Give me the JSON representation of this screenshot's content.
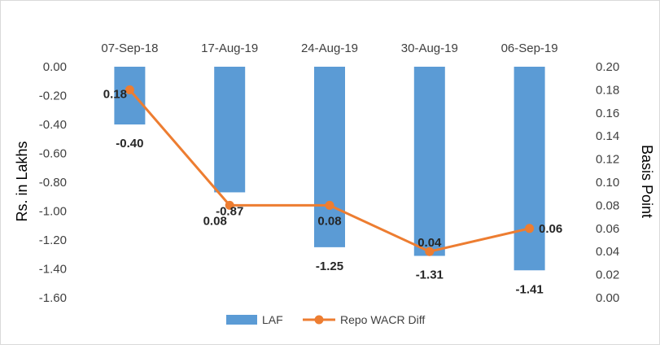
{
  "chart_data": {
    "type": "bar",
    "categories": [
      "07-Sep-18",
      "17-Aug-19",
      "24-Aug-19",
      "30-Aug-19",
      "06-Sep-19"
    ],
    "series": [
      {
        "name": "LAF",
        "type": "bar",
        "axis": "left",
        "values": [
          -0.4,
          -0.87,
          -1.25,
          -1.31,
          -1.41
        ],
        "labels": [
          "-0.40",
          "-0.87",
          "-1.25",
          "-1.31",
          "-1.41"
        ],
        "color": "#5B9BD5"
      },
      {
        "name": "Repo WACR Diff",
        "type": "line",
        "axis": "right",
        "values": [
          0.18,
          0.08,
          0.08,
          0.04,
          0.06
        ],
        "labels": [
          "0.18",
          "0.08",
          "0.08",
          "0.04",
          "0.06"
        ],
        "color": "#ED7D31"
      }
    ],
    "ylabel": "Rs. in Lakhs",
    "y2label": "Basis Point",
    "ylim": [
      -1.6,
      0.0
    ],
    "y_ticks": [
      "0.00",
      "-0.20",
      "-0.40",
      "-0.60",
      "-0.80",
      "-1.00",
      "-1.20",
      "-1.40",
      "-1.60"
    ],
    "y2lim": [
      0.0,
      0.2
    ],
    "y2_ticks": [
      "0.20",
      "0.18",
      "0.16",
      "0.14",
      "0.12",
      "0.10",
      "0.08",
      "0.06",
      "0.04",
      "0.02",
      "0.00"
    ],
    "x_axis_position": "top",
    "grid": false,
    "legend": "bottom"
  }
}
